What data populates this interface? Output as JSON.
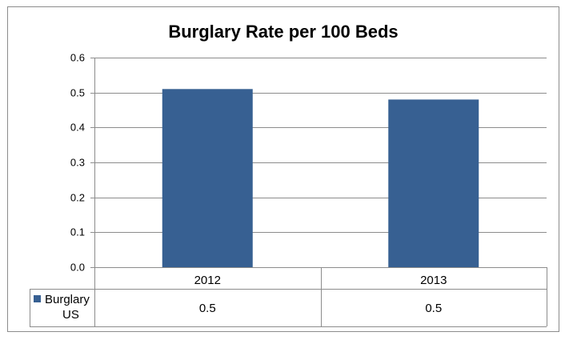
{
  "chart_data": {
    "type": "bar",
    "title": "Burglary Rate per 100 Beds",
    "xlabel": "",
    "ylabel": "",
    "categories": [
      "2012",
      "2013"
    ],
    "series": [
      {
        "name": "Burglary US",
        "values": [
          0.51,
          0.48
        ],
        "table_values": [
          "0.5",
          "0.5"
        ],
        "color": "#376092"
      }
    ],
    "ylim": [
      0,
      0.6
    ],
    "yticks": [
      "0.0",
      "0.1",
      "0.2",
      "0.3",
      "0.4",
      "0.5",
      "0.6"
    ],
    "grid": true,
    "legend": "data-table"
  }
}
